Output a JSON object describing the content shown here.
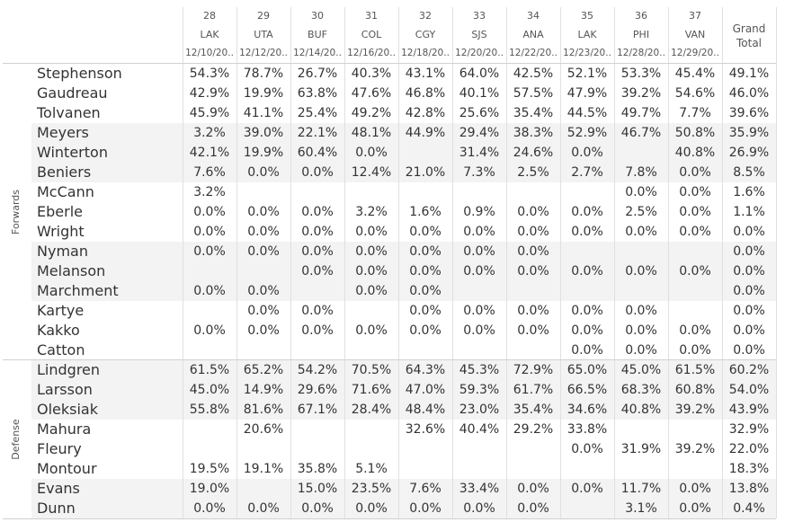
{
  "columns": [
    {
      "number": "28",
      "team": "LAK",
      "date": "12/10/20.."
    },
    {
      "number": "29",
      "team": "UTA",
      "date": "12/12/20.."
    },
    {
      "number": "30",
      "team": "BUF",
      "date": "12/14/20.."
    },
    {
      "number": "31",
      "team": "COL",
      "date": "12/16/20.."
    },
    {
      "number": "32",
      "team": "CGY",
      "date": "12/18/20.."
    },
    {
      "number": "33",
      "team": "SJS",
      "date": "12/20/20.."
    },
    {
      "number": "34",
      "team": "ANA",
      "date": "12/22/20.."
    },
    {
      "number": "35",
      "team": "LAK",
      "date": "12/23/20.."
    },
    {
      "number": "36",
      "team": "PHI",
      "date": "12/28/20.."
    },
    {
      "number": "37",
      "team": "VAN",
      "date": "12/29/20.."
    }
  ],
  "grand_total_header": "Grand Total",
  "groups": [
    {
      "name": "Forwards",
      "rows": [
        {
          "player": "Stephenson",
          "values": [
            "54.3%",
            "78.7%",
            "26.7%",
            "40.3%",
            "43.1%",
            "64.0%",
            "42.5%",
            "52.1%",
            "53.3%",
            "45.4%",
            "49.1%"
          ]
        },
        {
          "player": "Gaudreau",
          "values": [
            "42.9%",
            "19.9%",
            "63.8%",
            "47.6%",
            "46.8%",
            "40.1%",
            "57.5%",
            "47.9%",
            "39.2%",
            "54.6%",
            "46.0%"
          ]
        },
        {
          "player": "Tolvanen",
          "values": [
            "45.9%",
            "41.1%",
            "25.4%",
            "49.2%",
            "42.8%",
            "25.6%",
            "35.4%",
            "44.5%",
            "49.7%",
            "7.7%",
            "39.6%"
          ]
        },
        {
          "player": "Meyers",
          "values": [
            "3.2%",
            "39.0%",
            "22.1%",
            "48.1%",
            "44.9%",
            "29.4%",
            "38.3%",
            "52.9%",
            "46.7%",
            "50.8%",
            "35.9%"
          ]
        },
        {
          "player": "Winterton",
          "values": [
            "42.1%",
            "19.9%",
            "60.4%",
            "0.0%",
            null,
            "31.4%",
            "24.6%",
            "0.0%",
            null,
            "40.8%",
            "26.9%"
          ]
        },
        {
          "player": "Beniers",
          "values": [
            "7.6%",
            "0.0%",
            "0.0%",
            "12.4%",
            "21.0%",
            "7.3%",
            "2.5%",
            "2.7%",
            "7.8%",
            "0.0%",
            "8.5%"
          ]
        },
        {
          "player": "McCann",
          "values": [
            "3.2%",
            null,
            null,
            null,
            null,
            null,
            null,
            null,
            "0.0%",
            "0.0%",
            "1.6%"
          ]
        },
        {
          "player": "Eberle",
          "values": [
            "0.0%",
            "0.0%",
            "0.0%",
            "3.2%",
            "1.6%",
            "0.9%",
            "0.0%",
            "0.0%",
            "2.5%",
            "0.0%",
            "1.1%"
          ]
        },
        {
          "player": "Wright",
          "values": [
            "0.0%",
            "0.0%",
            "0.0%",
            "0.0%",
            "0.0%",
            "0.0%",
            "0.0%",
            "0.0%",
            "0.0%",
            "0.0%",
            "0.0%"
          ]
        },
        {
          "player": "Nyman",
          "values": [
            "0.0%",
            "0.0%",
            "0.0%",
            "0.0%",
            "0.0%",
            "0.0%",
            "0.0%",
            null,
            null,
            null,
            "0.0%"
          ]
        },
        {
          "player": "Melanson",
          "values": [
            null,
            null,
            "0.0%",
            "0.0%",
            "0.0%",
            "0.0%",
            "0.0%",
            "0.0%",
            "0.0%",
            "0.0%",
            "0.0%"
          ]
        },
        {
          "player": "Marchment",
          "values": [
            "0.0%",
            "0.0%",
            null,
            "0.0%",
            "0.0%",
            null,
            null,
            null,
            null,
            null,
            "0.0%"
          ]
        },
        {
          "player": "Kartye",
          "values": [
            null,
            "0.0%",
            "0.0%",
            null,
            "0.0%",
            "0.0%",
            "0.0%",
            "0.0%",
            "0.0%",
            null,
            "0.0%"
          ]
        },
        {
          "player": "Kakko",
          "values": [
            "0.0%",
            "0.0%",
            "0.0%",
            "0.0%",
            "0.0%",
            "0.0%",
            "0.0%",
            "0.0%",
            "0.0%",
            "0.0%",
            "0.0%"
          ]
        },
        {
          "player": "Catton",
          "values": [
            null,
            null,
            null,
            null,
            null,
            null,
            null,
            "0.0%",
            "0.0%",
            "0.0%",
            "0.0%"
          ]
        }
      ]
    },
    {
      "name": "Defense",
      "rows": [
        {
          "player": "Lindgren",
          "values": [
            "61.5%",
            "65.2%",
            "54.2%",
            "70.5%",
            "64.3%",
            "45.3%",
            "72.9%",
            "65.0%",
            "45.0%",
            "61.5%",
            "60.2%"
          ]
        },
        {
          "player": "Larsson",
          "values": [
            "45.0%",
            "14.9%",
            "29.6%",
            "71.6%",
            "47.0%",
            "59.3%",
            "61.7%",
            "66.5%",
            "68.3%",
            "60.8%",
            "54.0%"
          ]
        },
        {
          "player": "Oleksiak",
          "values": [
            "55.8%",
            "81.6%",
            "67.1%",
            "28.4%",
            "48.4%",
            "23.0%",
            "35.4%",
            "34.6%",
            "40.8%",
            "39.2%",
            "43.9%"
          ]
        },
        {
          "player": "Mahura",
          "values": [
            null,
            "20.6%",
            null,
            null,
            "32.6%",
            "40.4%",
            "29.2%",
            "33.8%",
            null,
            null,
            "32.9%"
          ]
        },
        {
          "player": "Fleury",
          "values": [
            null,
            null,
            null,
            null,
            null,
            null,
            null,
            "0.0%",
            "31.9%",
            "39.2%",
            "22.0%"
          ]
        },
        {
          "player": "Montour",
          "values": [
            "19.5%",
            "19.1%",
            "35.8%",
            "5.1%",
            null,
            null,
            null,
            null,
            null,
            null,
            "18.3%"
          ]
        },
        {
          "player": "Evans",
          "values": [
            "19.0%",
            null,
            "15.0%",
            "23.5%",
            "7.6%",
            "33.4%",
            "0.0%",
            "0.0%",
            "11.7%",
            "0.0%",
            "13.8%"
          ]
        },
        {
          "player": "Dunn",
          "values": [
            "0.0%",
            "0.0%",
            "0.0%",
            "0.0%",
            "0.0%",
            "0.0%",
            "0.0%",
            null,
            "3.1%",
            "0.0%",
            "0.4%"
          ]
        }
      ]
    }
  ]
}
